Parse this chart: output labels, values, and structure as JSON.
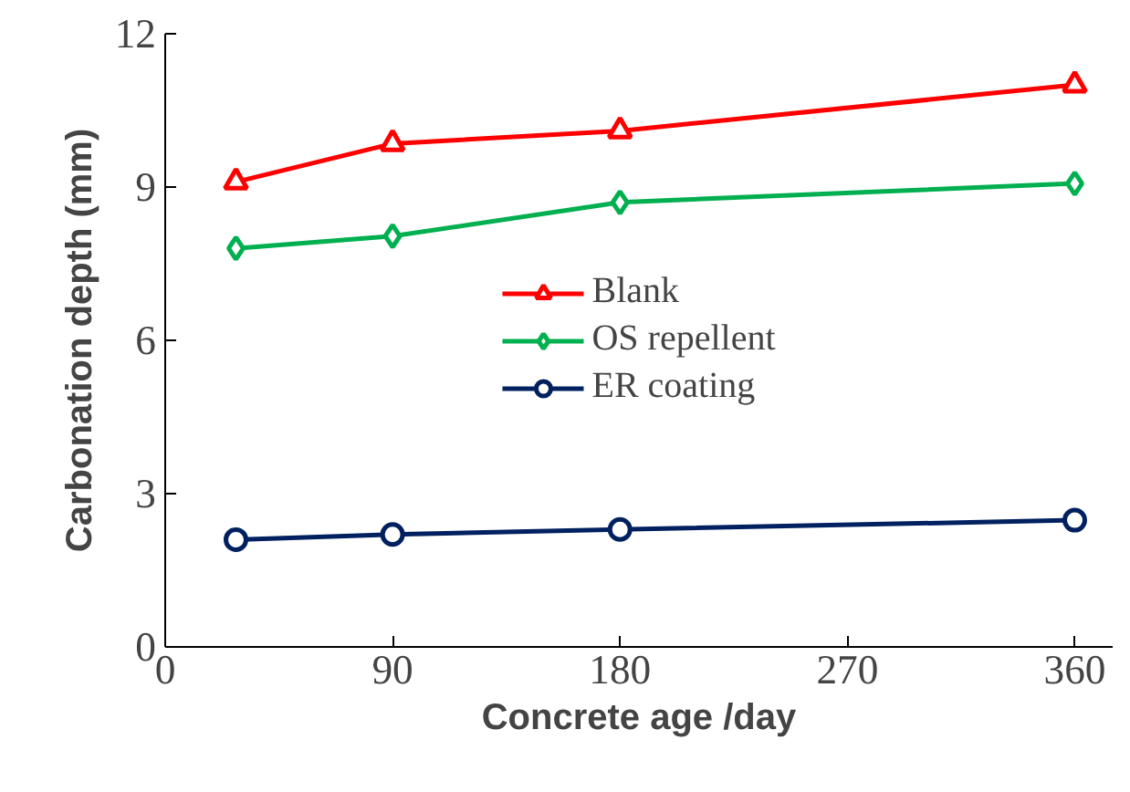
{
  "chart_data": {
    "type": "line",
    "xlabel": "Concrete age /day",
    "ylabel": "Carbonation depth (mm)",
    "x": [
      28,
      90,
      180,
      360
    ],
    "series": [
      {
        "name": "Blank",
        "color": "#ff0000",
        "marker": "triangle",
        "values": [
          9.1,
          9.85,
          10.1,
          11.0
        ]
      },
      {
        "name": "OS repellent",
        "color": "#00b050",
        "marker": "diamond",
        "values": [
          7.8,
          8.04,
          8.7,
          9.07
        ]
      },
      {
        "name": "ER coating",
        "color": "#002060",
        "marker": "circle",
        "values": [
          2.1,
          2.2,
          2.3,
          2.48
        ]
      }
    ],
    "xlim": [
      0,
      375
    ],
    "ylim": [
      0,
      12
    ],
    "xticks": [
      0,
      90,
      180,
      270,
      360
    ],
    "yticks": [
      0,
      3,
      6,
      9,
      12
    ],
    "grid": false,
    "legend": "center",
    "line_style": "solid"
  }
}
